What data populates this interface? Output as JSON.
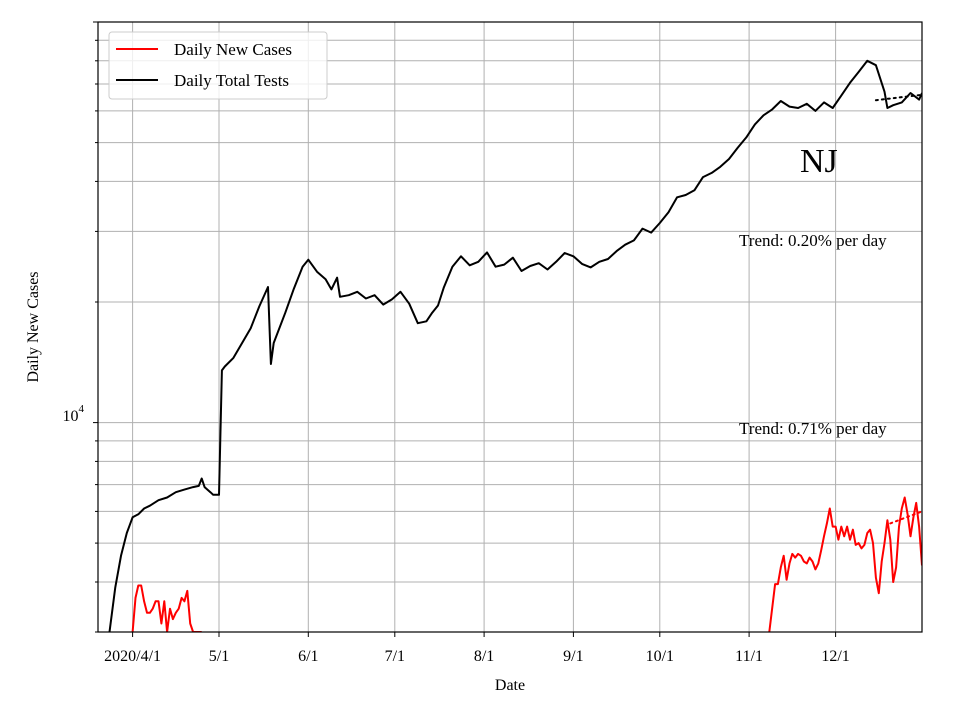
{
  "chart_data": {
    "type": "line",
    "title": "",
    "xlabel": "Date",
    "ylabel": "Daily New Cases",
    "yscale": "log",
    "ylim": [
      3000,
      100000
    ],
    "xlim": [
      "2020-03-20",
      "2020-12-31"
    ],
    "grid": true,
    "legend_position": "top-left",
    "x_ticks": [
      {
        "date": "2020-04-01",
        "label": "2020/4/1"
      },
      {
        "date": "2020-05-01",
        "label": "5/1"
      },
      {
        "date": "2020-06-01",
        "label": "6/1"
      },
      {
        "date": "2020-07-01",
        "label": "7/1"
      },
      {
        "date": "2020-08-01",
        "label": "8/1"
      },
      {
        "date": "2020-09-01",
        "label": "9/1"
      },
      {
        "date": "2020-10-01",
        "label": "10/1"
      },
      {
        "date": "2020-11-01",
        "label": "11/1"
      },
      {
        "date": "2020-12-01",
        "label": "12/1"
      }
    ],
    "y_tick_label": {
      "base": "10",
      "exp": "4",
      "value": 10000
    },
    "annotations": {
      "state": "NJ",
      "tests_trend": "Trend: 0.20% per day",
      "cases_trend": "Trend: 0.71% per day"
    },
    "series": [
      {
        "name": "Daily New Cases",
        "color": "#ff0000",
        "segments": [
          {
            "x": [
              "2020-04-01",
              "2020-04-02",
              "2020-04-03",
              "2020-04-04",
              "2020-04-05",
              "2020-04-06",
              "2020-04-07",
              "2020-04-08",
              "2020-04-09",
              "2020-04-10",
              "2020-04-11",
              "2020-04-12",
              "2020-04-13",
              "2020-04-14",
              "2020-04-15",
              "2020-04-16",
              "2020-04-17",
              "2020-04-18",
              "2020-04-19",
              "2020-04-20",
              "2020-04-21",
              "2020-04-22",
              "2020-04-23",
              "2020-04-24",
              "2020-04-25"
            ],
            "y": [
              3000,
              3650,
              3920,
              3920,
              3580,
              3350,
              3350,
              3430,
              3580,
              3580,
              3150,
              3580,
              3000,
              3430,
              3230,
              3350,
              3430,
              3650,
              3580,
              3800,
              3150,
              3000,
              3000,
              3000,
              3000
            ]
          },
          {
            "x": [
              "2020-11-08",
              "2020-11-10",
              "2020-11-11",
              "2020-11-12",
              "2020-11-13",
              "2020-11-14",
              "2020-11-15",
              "2020-11-16",
              "2020-11-17",
              "2020-11-18",
              "2020-11-19",
              "2020-11-20",
              "2020-11-21",
              "2020-11-22",
              "2020-11-23",
              "2020-11-24",
              "2020-11-25",
              "2020-11-26",
              "2020-11-27",
              "2020-11-28",
              "2020-11-29",
              "2020-11-30",
              "2020-12-01",
              "2020-12-02",
              "2020-12-03",
              "2020-12-04",
              "2020-12-05",
              "2020-12-06",
              "2020-12-07",
              "2020-12-08",
              "2020-12-09",
              "2020-12-10",
              "2020-12-11",
              "2020-12-12",
              "2020-12-13",
              "2020-12-14",
              "2020-12-15",
              "2020-12-16",
              "2020-12-17",
              "2020-12-18",
              "2020-12-19",
              "2020-12-20",
              "2020-12-21",
              "2020-12-22",
              "2020-12-23",
              "2020-12-24",
              "2020-12-25",
              "2020-12-26",
              "2020-12-27",
              "2020-12-28",
              "2020-12-29",
              "2020-12-30",
              "2020-12-31"
            ],
            "y": [
              3000,
              3950,
              3950,
              4350,
              4650,
              4050,
              4450,
              4700,
              4600,
              4700,
              4650,
              4500,
              4450,
              4600,
              4500,
              4300,
              4450,
              4800,
              5200,
              5600,
              6100,
              5500,
              5500,
              5100,
              5500,
              5200,
              5500,
              5100,
              5400,
              4950,
              5000,
              4850,
              4950,
              5300,
              5400,
              5000,
              4100,
              3750,
              4500,
              5000,
              5700,
              5100,
              4000,
              4350,
              5500,
              6100,
              6500,
              5900,
              5200,
              5800,
              6300,
              5500,
              4400
            ]
          }
        ]
      },
      {
        "name": "Daily Total Tests",
        "color": "#000000",
        "segments": [
          {
            "x": [
              "2020-03-24",
              "2020-03-26",
              "2020-03-28",
              "2020-03-30",
              "2020-04-01",
              "2020-04-03",
              "2020-04-05",
              "2020-04-07",
              "2020-04-10",
              "2020-04-13",
              "2020-04-16",
              "2020-04-19",
              "2020-04-22",
              "2020-04-24",
              "2020-04-25",
              "2020-04-26",
              "2020-04-28",
              "2020-04-29",
              "2020-05-01",
              "2020-05-02",
              "2020-05-03",
              "2020-05-06",
              "2020-05-09",
              "2020-05-12",
              "2020-05-15",
              "2020-05-18",
              "2020-05-19",
              "2020-05-20",
              "2020-05-24",
              "2020-05-27",
              "2020-05-30",
              "2020-06-01",
              "2020-06-04",
              "2020-06-07",
              "2020-06-09",
              "2020-06-11",
              "2020-06-12",
              "2020-06-15",
              "2020-06-18",
              "2020-06-21",
              "2020-06-24",
              "2020-06-27",
              "2020-06-30",
              "2020-07-03",
              "2020-07-06",
              "2020-07-09",
              "2020-07-12",
              "2020-07-14",
              "2020-07-16",
              "2020-07-18",
              "2020-07-21",
              "2020-07-24",
              "2020-07-27",
              "2020-07-30",
              "2020-08-02",
              "2020-08-05",
              "2020-08-08",
              "2020-08-11",
              "2020-08-14",
              "2020-08-17",
              "2020-08-20",
              "2020-08-23",
              "2020-08-26",
              "2020-08-29",
              "2020-09-01",
              "2020-09-04",
              "2020-09-07",
              "2020-09-10",
              "2020-09-13",
              "2020-09-16",
              "2020-09-19",
              "2020-09-22",
              "2020-09-25",
              "2020-09-28",
              "2020-10-01",
              "2020-10-04",
              "2020-10-07",
              "2020-10-10",
              "2020-10-13",
              "2020-10-16",
              "2020-10-19",
              "2020-10-22",
              "2020-10-25",
              "2020-10-28",
              "2020-10-31",
              "2020-11-03",
              "2020-11-06",
              "2020-11-09",
              "2020-11-12",
              "2020-11-15",
              "2020-11-18",
              "2020-11-21",
              "2020-11-24",
              "2020-11-27",
              "2020-11-30",
              "2020-12-03",
              "2020-12-06",
              "2020-12-09",
              "2020-12-12",
              "2020-12-15",
              "2020-12-18",
              "2020-12-19",
              "2020-12-21",
              "2020-12-24",
              "2020-12-27",
              "2020-12-30",
              "2020-12-31"
            ],
            "y": [
              3000,
              3880,
              4650,
              5300,
              5800,
              5900,
              6100,
              6200,
              6400,
              6500,
              6700,
              6800,
              6900,
              6950,
              7250,
              6900,
              6700,
              6600,
              6600,
              13500,
              13800,
              14500,
              15800,
              17200,
              19500,
              21800,
              14000,
              15800,
              18800,
              21600,
              24500,
              25500,
              23800,
              22800,
              21500,
              23000,
              20600,
              20800,
              21200,
              20400,
              20800,
              19700,
              20300,
              21200,
              19800,
              17700,
              17900,
              18800,
              19600,
              21700,
              24500,
              26000,
              24700,
              25200,
              26600,
              24500,
              24800,
              25800,
              23900,
              24600,
              25000,
              24100,
              25200,
              26500,
              26000,
              24900,
              24400,
              25200,
              25600,
              26800,
              27800,
              28500,
              30500,
              29800,
              31500,
              33500,
              36500,
              37000,
              38000,
              41000,
              42000,
              43500,
              45500,
              48500,
              51500,
              55500,
              58500,
              60500,
              63500,
              61500,
              61000,
              62500,
              60000,
              63000,
              61000,
              65500,
              70500,
              75000,
              80000,
              78000,
              67000,
              61000,
              62000,
              63000,
              66500,
              64000,
              66500
            ]
          }
        ]
      }
    ],
    "trend_lines": [
      {
        "series": "Daily Total Tests",
        "x": [
          "2020-12-15",
          "2020-12-31"
        ],
        "y": [
          63800,
          65800
        ]
      },
      {
        "series": "Daily New Cases",
        "x": [
          "2020-12-20",
          "2020-12-31"
        ],
        "y": [
          5600,
          6000
        ]
      }
    ]
  }
}
